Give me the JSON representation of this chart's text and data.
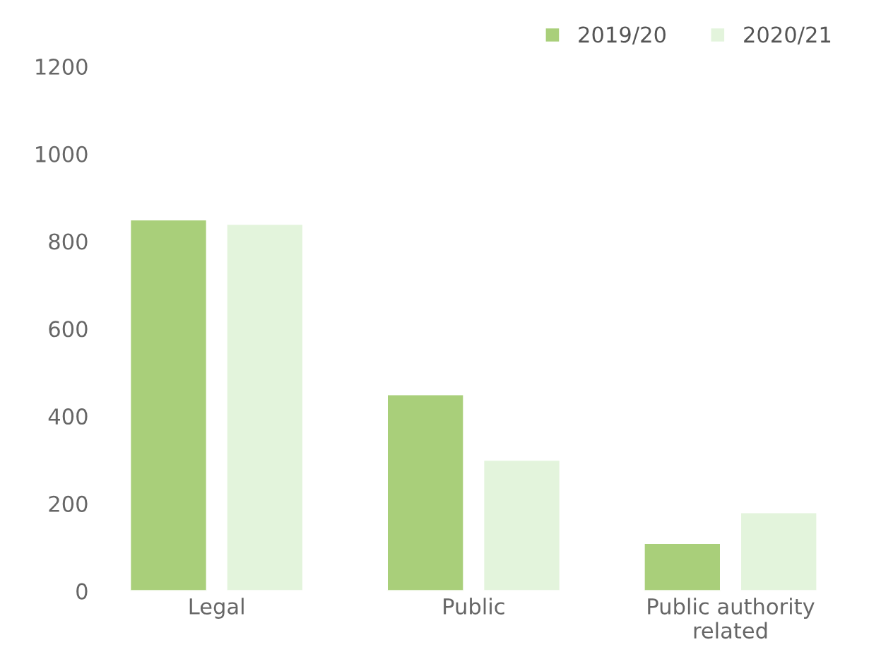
{
  "chart_data": {
    "type": "bar",
    "categories": [
      "Legal",
      "Public",
      "Public authority\nrelated"
    ],
    "series": [
      {
        "name": "2019/20",
        "color": "#a9cf7a",
        "values": [
          850,
          450,
          110
        ]
      },
      {
        "name": "2020/21",
        "color": "#e3f4dc",
        "values": [
          840,
          300,
          180
        ]
      }
    ],
    "ylim": [
      0,
      1200
    ],
    "yticks": [
      0,
      200,
      400,
      600,
      800,
      1000,
      1200
    ],
    "grid": false,
    "legend": "top right"
  }
}
